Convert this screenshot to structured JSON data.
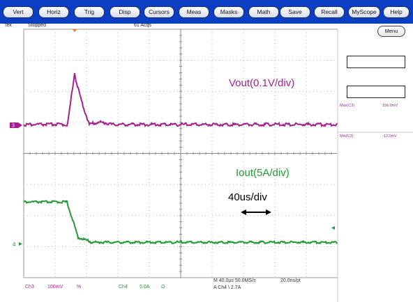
{
  "menubar": {
    "buttons": [
      "Vert",
      "Horiz",
      "Trig",
      "Disp",
      "Cursors",
      "Meas",
      "Masks",
      "Math",
      "Save",
      "Recall",
      "MyScope",
      "Help"
    ]
  },
  "status": {
    "brand": "Tek",
    "state": "Stopped",
    "acquisitions": "61 Acqs",
    "menu_button": "Menu"
  },
  "annotations": {
    "vout": "Vout(0.1V/div)",
    "iout": "Iout(5A/div)",
    "timebase": "40us/div"
  },
  "markers": {
    "ch3": "3",
    "ch4": "4"
  },
  "measurements": [
    {
      "label": "Max(C3)",
      "value": "156.0mV"
    },
    {
      "label": "Min(C3)",
      "value": "-12.0mV"
    }
  ],
  "footer": {
    "ch3_name": "Ch3",
    "ch3_scale": "100mV",
    "ch3_coupling": "%",
    "ch4_name": "Ch4",
    "ch4_scale": "5.0A",
    "ch4_coupling": "Ω",
    "horizontal": "M 40.0µs 50.0MS/s",
    "record": "20.0ns/pt",
    "trigger": "A Ch4 \\ 2.7A"
  },
  "colors": {
    "menubar": "#0b3ec2",
    "ch3_trace": "#a41f8f",
    "ch4_trace": "#1f9a34",
    "trigger_marker": "#f07020"
  }
}
